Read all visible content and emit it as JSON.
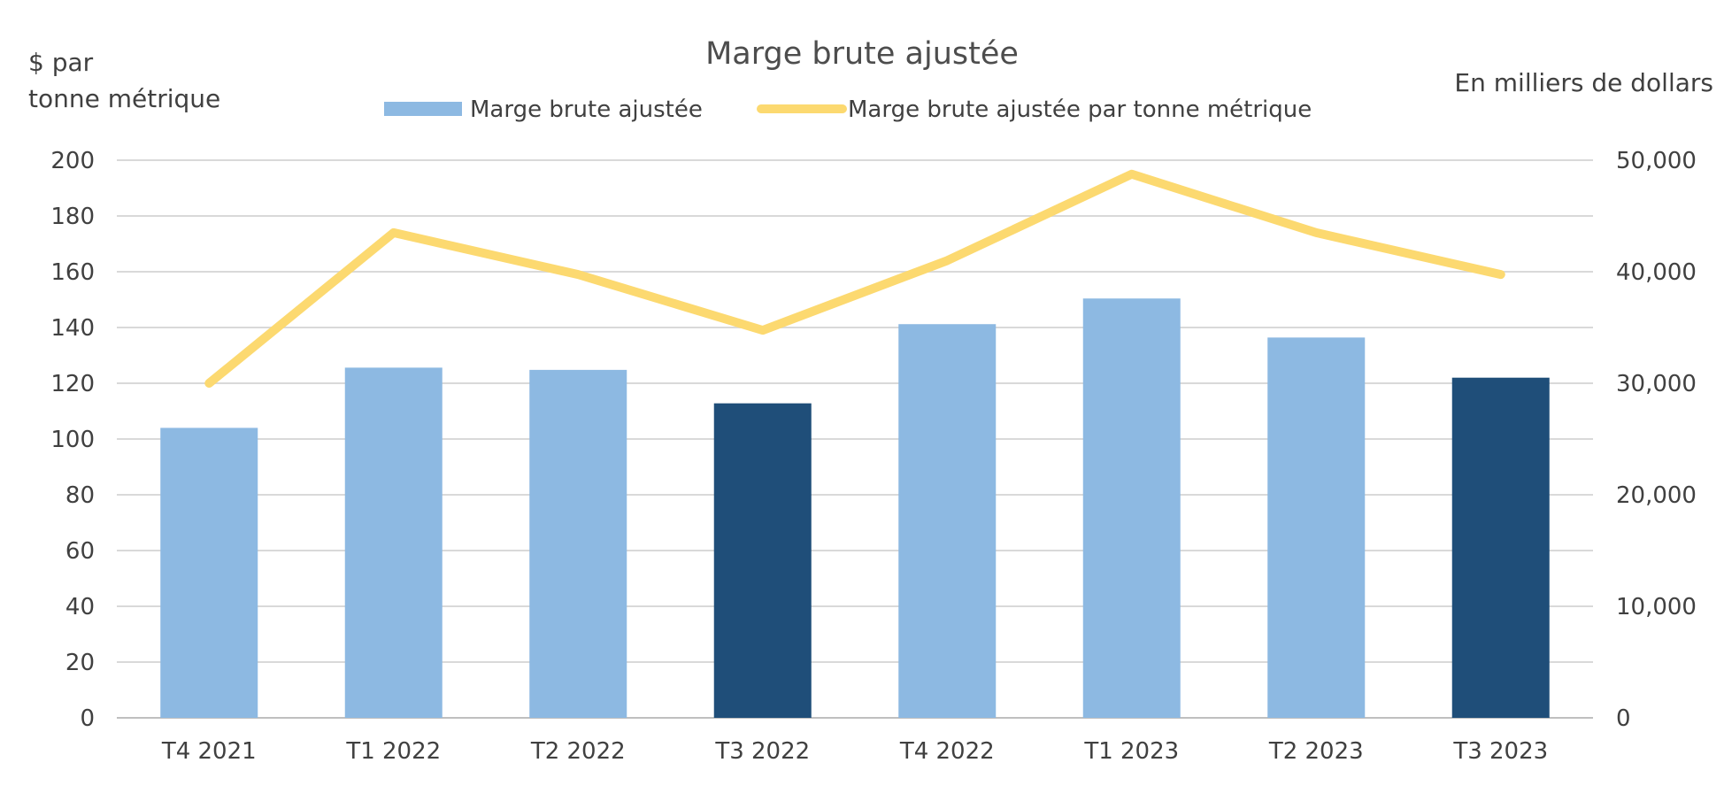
{
  "chart_data": {
    "type": "bar",
    "title": "Marge brute ajustée",
    "left_axis_label": [
      "$ par",
      "tonne métrique"
    ],
    "right_axis_label": "En milliers de dollars",
    "categories": [
      "T4 2021",
      "T1 2022",
      "T2 2022",
      "T3 2022",
      "T4 2022",
      "T1 2023",
      "T2 2023",
      "T3 2023"
    ],
    "left_axis": {
      "min": 0,
      "max": 200,
      "step": 20,
      "ticks": [
        "0",
        "20",
        "40",
        "60",
        "80",
        "100",
        "120",
        "140",
        "160",
        "180",
        "200"
      ]
    },
    "right_axis": {
      "min": 0,
      "max": 50000,
      "step": 10000,
      "ticks": [
        "0",
        "10,000",
        "20,000",
        "30,000",
        "40,000",
        "50,000"
      ]
    },
    "grid": true,
    "legend_position": "top",
    "series": [
      {
        "name": "Marge brute ajustée",
        "type": "bar",
        "axis": "right",
        "values": [
          26000,
          31400,
          31200,
          28200,
          35300,
          37600,
          34100,
          30500
        ],
        "color": "#8db9e2",
        "highlight_color": "#1f4e79",
        "highlighted_categories": [
          "T3 2022",
          "T3 2023"
        ]
      },
      {
        "name": "Marge brute ajustée par tonne métrique",
        "type": "line",
        "axis": "left",
        "values": [
          120,
          174,
          159,
          139,
          164,
          195,
          174,
          159
        ],
        "color": "#fcd970"
      }
    ]
  }
}
